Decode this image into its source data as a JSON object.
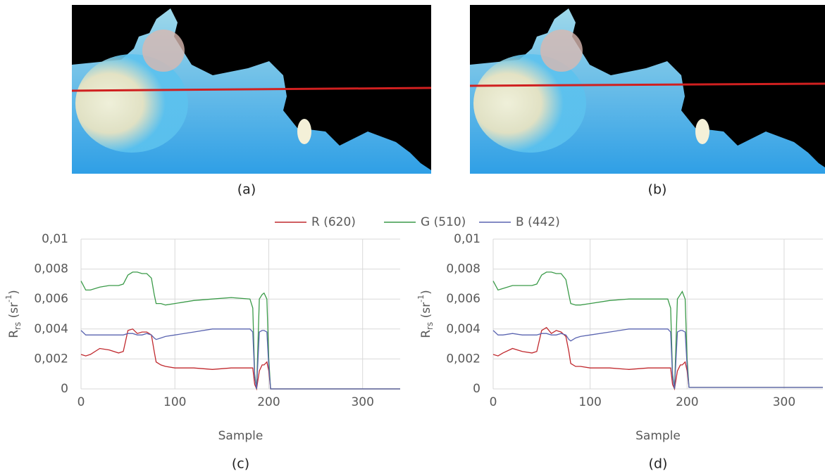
{
  "images": [
    {
      "caption": "(a)"
    },
    {
      "caption": "(b)"
    }
  ],
  "chart_data": [
    {
      "type": "line",
      "caption": "(c)",
      "xlabel": "Sample",
      "ylabel_parts": [
        "R",
        "rs",
        " (sr",
        "-1",
        ")"
      ],
      "x": [
        0,
        5,
        10,
        20,
        30,
        40,
        45,
        50,
        55,
        60,
        65,
        70,
        75,
        78,
        80,
        85,
        90,
        100,
        120,
        140,
        160,
        180,
        183,
        185,
        187,
        190,
        193,
        195,
        198,
        200,
        202,
        210,
        250,
        300,
        340
      ],
      "xlim": [
        0,
        340
      ],
      "ylim": [
        0,
        0.01
      ],
      "xticks": [
        0,
        100,
        200,
        300
      ],
      "yticks": [
        0,
        {
          "value": 0.002,
          "label": "0,002"
        },
        {
          "value": 0.004,
          "label": "0,004"
        },
        {
          "value": 0.006,
          "label": "0,006"
        },
        {
          "value": 0.008,
          "label": "0,008"
        },
        {
          "value": 0.01,
          "label": "0,01"
        }
      ],
      "grid": true,
      "series": [
        {
          "name": "R (620)",
          "color": "#c0282d",
          "values": [
            0.0023,
            0.0022,
            0.0023,
            0.0027,
            0.0026,
            0.0024,
            0.0025,
            0.0039,
            0.004,
            0.0037,
            0.0038,
            0.0038,
            0.0036,
            0.0025,
            0.0018,
            0.0016,
            0.0015,
            0.0014,
            0.0014,
            0.0013,
            0.0014,
            0.0014,
            0.0014,
            0.0003,
            0,
            0.0012,
            0.0016,
            0.0016,
            0.0018,
            0.0012,
            0,
            0,
            0,
            0,
            0
          ]
        },
        {
          "name": "G (510)",
          "color": "#3a9a48",
          "values": [
            0.0072,
            0.0066,
            0.0066,
            0.0068,
            0.0069,
            0.0069,
            0.007,
            0.0076,
            0.0078,
            0.0078,
            0.0077,
            0.0077,
            0.0074,
            0.0063,
            0.0057,
            0.0057,
            0.0056,
            0.0057,
            0.0059,
            0.006,
            0.0061,
            0.006,
            0.0054,
            0.001,
            0,
            0.006,
            0.0063,
            0.0064,
            0.006,
            0.002,
            0,
            0,
            0,
            0,
            0
          ]
        },
        {
          "name": "B (442)",
          "color": "#5a64b0",
          "values": [
            0.0039,
            0.0036,
            0.0036,
            0.0036,
            0.0036,
            0.0036,
            0.0036,
            0.0037,
            0.0037,
            0.0036,
            0.0036,
            0.0037,
            0.0036,
            0.0034,
            0.0033,
            0.0034,
            0.0035,
            0.0036,
            0.0038,
            0.004,
            0.004,
            0.004,
            0.0038,
            0.0008,
            0,
            0.0038,
            0.0039,
            0.0039,
            0.0038,
            0.0015,
            0,
            0,
            0,
            0,
            0
          ]
        }
      ]
    },
    {
      "type": "line",
      "caption": "(d)",
      "xlabel": "Sample",
      "ylabel_parts": [
        "R",
        "rs",
        " (sr",
        "-1",
        ")"
      ],
      "x": [
        0,
        5,
        10,
        20,
        30,
        40,
        45,
        50,
        55,
        60,
        65,
        70,
        75,
        78,
        80,
        85,
        90,
        100,
        120,
        140,
        160,
        180,
        183,
        185,
        187,
        190,
        193,
        195,
        198,
        200,
        202,
        210,
        250,
        300,
        340
      ],
      "xlim": [
        0,
        340
      ],
      "ylim": [
        0,
        0.01
      ],
      "xticks": [
        0,
        100,
        200,
        300
      ],
      "yticks": [
        0,
        {
          "value": 0.002,
          "label": "0,002"
        },
        {
          "value": 0.004,
          "label": "0,004"
        },
        {
          "value": 0.006,
          "label": "0,006"
        },
        {
          "value": 0.008,
          "label": "0,008"
        },
        {
          "value": 0.01,
          "label": "0,01"
        }
      ],
      "grid": true,
      "series": [
        {
          "color": "#c0282d",
          "values": [
            0.0023,
            0.0022,
            0.0024,
            0.0027,
            0.0025,
            0.0024,
            0.0025,
            0.0039,
            0.0041,
            0.0037,
            0.0039,
            0.0038,
            0.0035,
            0.0025,
            0.0017,
            0.0015,
            0.0015,
            0.0014,
            0.0014,
            0.0013,
            0.0014,
            0.0014,
            0.0014,
            0.0003,
            0,
            0.0012,
            0.0016,
            0.0016,
            0.0018,
            0.0012,
            0.0001,
            0.0001,
            0.0001,
            0.0001,
            0.0001
          ]
        },
        {
          "color": "#3a9a48",
          "values": [
            0.0072,
            0.0066,
            0.0067,
            0.0069,
            0.0069,
            0.0069,
            0.007,
            0.0076,
            0.0078,
            0.0078,
            0.0077,
            0.0077,
            0.0073,
            0.0063,
            0.0057,
            0.0056,
            0.0056,
            0.0057,
            0.0059,
            0.006,
            0.006,
            0.006,
            0.0054,
            0.001,
            0,
            0.006,
            0.0063,
            0.0065,
            0.006,
            0.002,
            0.0001,
            0.0001,
            0.0001,
            0.0001,
            0.0001
          ]
        },
        {
          "color": "#5a64b0",
          "values": [
            0.0039,
            0.0036,
            0.0036,
            0.0037,
            0.0036,
            0.0036,
            0.0036,
            0.0037,
            0.0037,
            0.0036,
            0.0036,
            0.0037,
            0.0036,
            0.0033,
            0.0032,
            0.0034,
            0.0035,
            0.0036,
            0.0038,
            0.004,
            0.004,
            0.004,
            0.0038,
            0.0008,
            0,
            0.0038,
            0.0039,
            0.0039,
            0.0038,
            0.0015,
            0.0001,
            0.0001,
            0.0001,
            0.0001,
            0.0001
          ]
        }
      ]
    }
  ]
}
